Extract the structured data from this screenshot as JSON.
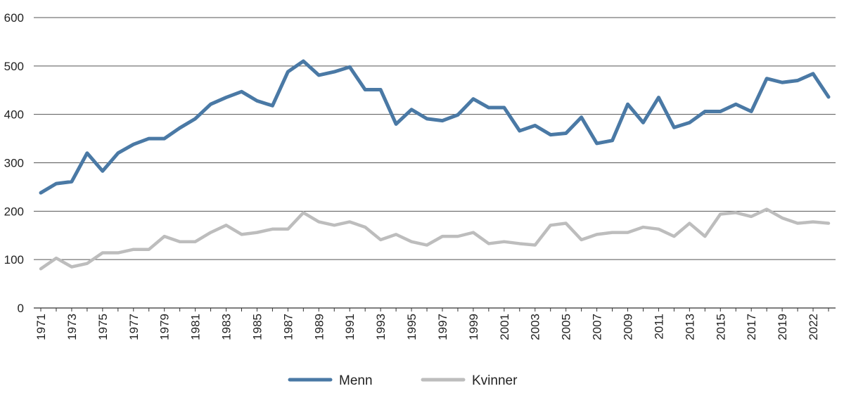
{
  "chart_data": {
    "type": "line",
    "x": [
      1971,
      1972,
      1973,
      1974,
      1975,
      1976,
      1977,
      1978,
      1979,
      1980,
      1981,
      1982,
      1983,
      1984,
      1985,
      1986,
      1987,
      1988,
      1989,
      1990,
      1991,
      1992,
      1993,
      1994,
      1995,
      1996,
      1997,
      1998,
      1999,
      2000,
      2001,
      2002,
      2003,
      2004,
      2005,
      2006,
      2007,
      2008,
      2009,
      2010,
      2011,
      2012,
      2013,
      2014,
      2015,
      2016,
      2017,
      2018,
      2019,
      2020,
      2022,
      2023
    ],
    "x_tick_labels": [
      "1971",
      "1973",
      "1975",
      "1977",
      "1979",
      "1981",
      "1983",
      "1985",
      "1987",
      "1989",
      "1991",
      "1993",
      "1995",
      "1997",
      "1999",
      "2001",
      "2003",
      "2005",
      "2007",
      "2009",
      "2011",
      "2013",
      "2015",
      "2017",
      "2019",
      "2022"
    ],
    "series": [
      {
        "name": "Menn",
        "color": "#4a79a5",
        "values": [
          238,
          257,
          261,
          320,
          283,
          320,
          338,
          350,
          350,
          372,
          391,
          421,
          435,
          447,
          428,
          418,
          488,
          510,
          481,
          488,
          498,
          451,
          451,
          380,
          410,
          391,
          387,
          399,
          432,
          414,
          414,
          366,
          377,
          358,
          361,
          394,
          340,
          346,
          421,
          383,
          435,
          373,
          383,
          406,
          406,
          421,
          406,
          474,
          466,
          470,
          484,
          436
        ]
      },
      {
        "name": "Kvinner",
        "color": "#bdbdbd",
        "values": [
          81,
          103,
          85,
          92,
          114,
          114,
          121,
          121,
          148,
          137,
          137,
          156,
          171,
          152,
          156,
          163,
          163,
          197,
          178,
          171,
          178,
          167,
          141,
          152,
          137,
          130,
          148,
          148,
          156,
          133,
          137,
          133,
          130,
          171,
          175,
          141,
          152,
          156,
          156,
          167,
          163,
          148,
          175,
          148,
          194,
          197,
          189,
          204,
          186,
          175,
          178,
          175
        ]
      }
    ],
    "y_ticks": [
      0,
      100,
      200,
      300,
      400,
      500,
      600
    ],
    "ylim": [
      0,
      600
    ],
    "title": "",
    "xlabel": "",
    "ylabel": "",
    "grid": true,
    "legend_position": "bottom-center"
  }
}
